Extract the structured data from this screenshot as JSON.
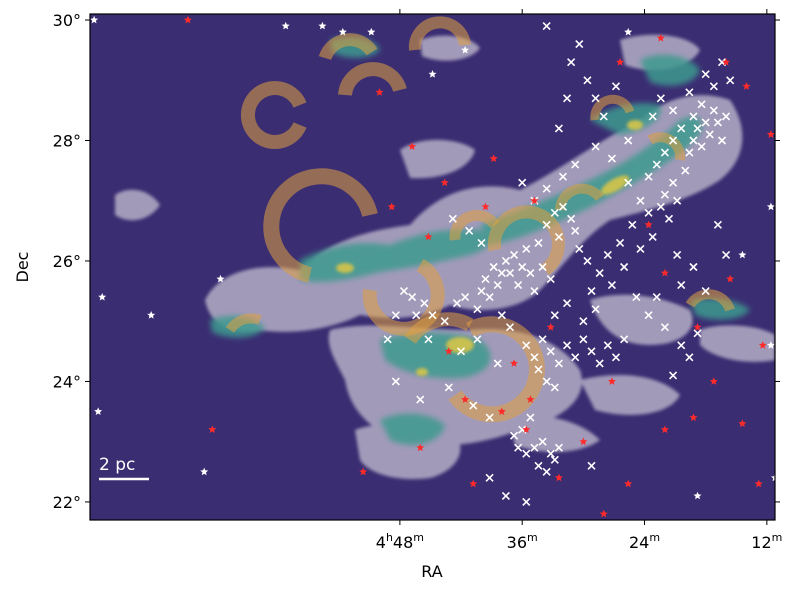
{
  "chart_data": {
    "type": "scatter",
    "title": "",
    "xlabel": "RA",
    "ylabel": "Dec",
    "xlim": [
      79.6,
      62.8
    ],
    "ylim": [
      21.7,
      30.1
    ],
    "x_ticks": [
      {
        "value": 72,
        "label": "4h48m",
        "h": "4",
        "m": "48"
      },
      {
        "value": 69,
        "label": "36m",
        "h": "",
        "m": "36"
      },
      {
        "value": 66,
        "label": "24m",
        "h": "",
        "m": "24"
      },
      {
        "value": 63,
        "label": "12m",
        "h": "",
        "m": "12"
      }
    ],
    "y_ticks": [
      {
        "value": 22,
        "label": "22°"
      },
      {
        "value": 24,
        "label": "24°"
      },
      {
        "value": 26,
        "label": "26°"
      },
      {
        "value": 28,
        "label": "28°"
      },
      {
        "value": 30,
        "label": "30°"
      }
    ],
    "scale_bar": {
      "label": "2 pc"
    },
    "background_color": "#3b2d72",
    "colors": {
      "cloud_gray": "#b9b3c9",
      "cloud_teal": "#3d9a8f",
      "cloud_yellow": "#d6c54a",
      "arc_orange": "#e0a040",
      "cross": "#ffffff",
      "red_star": "#ff2a2a",
      "white_star": "#ffffff"
    },
    "series": [
      {
        "marker": "cross",
        "color": "#ffffff",
        "points": [
          [
            71.9,
            25.5
          ],
          [
            71.7,
            25.4
          ],
          [
            71.6,
            25.1
          ],
          [
            71.4,
            25.3
          ],
          [
            71.2,
            25.1
          ],
          [
            70.9,
            25.0
          ],
          [
            70.6,
            25.3
          ],
          [
            70.4,
            25.4
          ],
          [
            70.1,
            25.2
          ],
          [
            70.0,
            25.5
          ],
          [
            69.9,
            25.7
          ],
          [
            69.8,
            25.4
          ],
          [
            69.7,
            25.9
          ],
          [
            69.6,
            25.6
          ],
          [
            69.5,
            25.8
          ],
          [
            69.4,
            26.0
          ],
          [
            69.3,
            25.8
          ],
          [
            69.2,
            26.1
          ],
          [
            69.1,
            25.6
          ],
          [
            69.0,
            25.9
          ],
          [
            68.9,
            26.2
          ],
          [
            68.8,
            25.8
          ],
          [
            68.6,
            26.3
          ],
          [
            68.5,
            25.9
          ],
          [
            68.4,
            26.6
          ],
          [
            68.3,
            25.7
          ],
          [
            68.2,
            26.8
          ],
          [
            68.1,
            26.4
          ],
          [
            68.0,
            26.9
          ],
          [
            67.8,
            26.7
          ],
          [
            67.7,
            26.5
          ],
          [
            67.6,
            26.2
          ],
          [
            67.4,
            26.0
          ],
          [
            67.3,
            25.5
          ],
          [
            67.2,
            25.2
          ],
          [
            67.1,
            25.8
          ],
          [
            66.9,
            26.1
          ],
          [
            66.8,
            25.6
          ],
          [
            66.6,
            26.3
          ],
          [
            66.5,
            25.9
          ],
          [
            66.3,
            26.6
          ],
          [
            66.1,
            26.2
          ],
          [
            65.9,
            26.8
          ],
          [
            65.8,
            26.4
          ],
          [
            65.6,
            26.9
          ],
          [
            65.5,
            27.1
          ],
          [
            65.4,
            26.7
          ],
          [
            65.3,
            27.3
          ],
          [
            65.2,
            27.0
          ],
          [
            65.0,
            27.5
          ],
          [
            64.9,
            27.8
          ],
          [
            64.8,
            28.0
          ],
          [
            64.7,
            28.2
          ],
          [
            64.6,
            27.9
          ],
          [
            64.5,
            28.3
          ],
          [
            64.4,
            28.1
          ],
          [
            64.3,
            28.5
          ],
          [
            64.2,
            28.3
          ],
          [
            64.1,
            28.0
          ],
          [
            64.0,
            28.4
          ],
          [
            64.6,
            28.6
          ],
          [
            64.8,
            28.4
          ],
          [
            65.1,
            28.2
          ],
          [
            65.3,
            28.0
          ],
          [
            65.5,
            27.8
          ],
          [
            65.7,
            27.6
          ],
          [
            64.3,
            28.9
          ],
          [
            64.1,
            29.3
          ],
          [
            63.9,
            29.0
          ],
          [
            64.5,
            29.1
          ],
          [
            68.9,
            24.6
          ],
          [
            68.7,
            24.4
          ],
          [
            68.5,
            24.7
          ],
          [
            68.3,
            24.5
          ],
          [
            68.1,
            24.3
          ],
          [
            67.9,
            24.6
          ],
          [
            67.7,
            24.4
          ],
          [
            67.5,
            24.7
          ],
          [
            67.3,
            24.5
          ],
          [
            67.1,
            24.3
          ],
          [
            66.9,
            24.6
          ],
          [
            66.7,
            24.4
          ],
          [
            66.5,
            24.7
          ],
          [
            68.6,
            24.2
          ],
          [
            68.4,
            24.0
          ],
          [
            68.2,
            23.9
          ],
          [
            69.2,
            23.1
          ],
          [
            69.1,
            22.9
          ],
          [
            68.9,
            22.8
          ],
          [
            68.7,
            22.9
          ],
          [
            68.5,
            23.0
          ],
          [
            68.3,
            22.8
          ],
          [
            68.1,
            22.9
          ],
          [
            69.0,
            23.2
          ],
          [
            68.8,
            23.4
          ],
          [
            68.6,
            22.6
          ],
          [
            68.4,
            22.5
          ],
          [
            68.2,
            22.7
          ],
          [
            72.1,
            25.1
          ],
          [
            72.3,
            24.7
          ],
          [
            71.3,
            24.7
          ],
          [
            70.5,
            24.5
          ],
          [
            70.1,
            24.7
          ],
          [
            69.6,
            24.3
          ],
          [
            70.8,
            23.9
          ],
          [
            71.5,
            23.7
          ],
          [
            72.1,
            24.0
          ],
          [
            70.2,
            23.6
          ],
          [
            69.8,
            23.4
          ],
          [
            69.0,
            27.3
          ],
          [
            68.7,
            27.0
          ],
          [
            68.4,
            27.2
          ],
          [
            68.0,
            27.4
          ],
          [
            67.7,
            27.6
          ],
          [
            67.2,
            27.9
          ],
          [
            66.8,
            27.7
          ],
          [
            66.4,
            28.0
          ],
          [
            65.8,
            28.4
          ],
          [
            65.6,
            28.7
          ],
          [
            65.3,
            28.5
          ],
          [
            64.9,
            28.8
          ],
          [
            66.2,
            25.4
          ],
          [
            65.9,
            25.1
          ],
          [
            65.5,
            24.9
          ],
          [
            65.1,
            24.6
          ],
          [
            64.7,
            24.8
          ],
          [
            65.3,
            24.1
          ],
          [
            64.9,
            24.4
          ],
          [
            67.6,
            29.6
          ],
          [
            67.8,
            29.3
          ],
          [
            67.4,
            29.0
          ],
          [
            67.2,
            28.7
          ],
          [
            67.0,
            28.4
          ],
          [
            66.7,
            28.9
          ],
          [
            68.4,
            29.9
          ],
          [
            65.1,
            25.6
          ],
          [
            64.8,
            25.9
          ],
          [
            64.5,
            25.5
          ],
          [
            64.2,
            26.6
          ],
          [
            64.0,
            26.1
          ],
          [
            70.7,
            26.7
          ],
          [
            70.3,
            26.5
          ],
          [
            69.5,
            25.1
          ],
          [
            69.3,
            24.9
          ],
          [
            68.7,
            25.5
          ],
          [
            68.2,
            25.1
          ],
          [
            67.9,
            25.3
          ],
          [
            67.5,
            25.0
          ],
          [
            70.0,
            26.3
          ],
          [
            66.4,
            27.3
          ],
          [
            66.1,
            27.0
          ],
          [
            65.7,
            25.4
          ],
          [
            69.8,
            22.4
          ],
          [
            69.4,
            22.1
          ],
          [
            68.9,
            22.0
          ],
          [
            67.3,
            22.6
          ],
          [
            68.1,
            28.2
          ],
          [
            67.9,
            28.7
          ],
          [
            65.9,
            27.4
          ],
          [
            65.2,
            26.1
          ]
        ]
      },
      {
        "marker": "star",
        "color": "#ff2a2a",
        "points": [
          [
            77.2,
            30.0
          ],
          [
            72.5,
            28.8
          ],
          [
            71.7,
            27.9
          ],
          [
            70.9,
            27.3
          ],
          [
            69.9,
            26.9
          ],
          [
            69.7,
            27.7
          ],
          [
            68.7,
            27.0
          ],
          [
            66.6,
            29.3
          ],
          [
            65.9,
            26.6
          ],
          [
            65.5,
            25.8
          ],
          [
            64.0,
            29.3
          ],
          [
            63.5,
            28.9
          ],
          [
            62.9,
            28.1
          ],
          [
            72.2,
            26.9
          ],
          [
            71.3,
            26.4
          ],
          [
            70.8,
            24.5
          ],
          [
            70.4,
            23.7
          ],
          [
            69.2,
            24.3
          ],
          [
            68.9,
            23.2
          ],
          [
            68.1,
            22.4
          ],
          [
            67.5,
            23.0
          ],
          [
            66.4,
            22.3
          ],
          [
            65.5,
            23.2
          ],
          [
            64.8,
            23.4
          ],
          [
            64.3,
            24.0
          ],
          [
            63.6,
            23.3
          ],
          [
            63.2,
            22.3
          ],
          [
            63.1,
            24.6
          ],
          [
            66.8,
            24.0
          ],
          [
            71.5,
            22.9
          ],
          [
            72.9,
            22.5
          ],
          [
            76.6,
            23.2
          ],
          [
            70.2,
            22.3
          ],
          [
            69.5,
            23.5
          ],
          [
            68.3,
            24.9
          ],
          [
            67.0,
            21.8
          ],
          [
            65.6,
            29.7
          ],
          [
            64.7,
            24.9
          ],
          [
            63.9,
            25.7
          ],
          [
            68.8,
            23.7
          ]
        ]
      },
      {
        "marker": "star",
        "color": "#ffffff",
        "points": [
          [
            79.5,
            30.0
          ],
          [
            74.8,
            29.9
          ],
          [
            73.9,
            29.9
          ],
          [
            73.4,
            29.8
          ],
          [
            71.2,
            29.1
          ],
          [
            70.4,
            29.5
          ],
          [
            62.7,
            29.9
          ],
          [
            62.5,
            28.8
          ],
          [
            62.9,
            26.9
          ],
          [
            63.6,
            26.1
          ],
          [
            62.9,
            24.6
          ],
          [
            64.7,
            22.1
          ],
          [
            62.8,
            22.4
          ],
          [
            76.8,
            22.5
          ],
          [
            78.1,
            25.1
          ],
          [
            79.3,
            25.4
          ],
          [
            76.4,
            25.7
          ],
          [
            79.4,
            23.5
          ],
          [
            72.7,
            29.8
          ],
          [
            66.4,
            29.8
          ]
        ]
      }
    ]
  }
}
